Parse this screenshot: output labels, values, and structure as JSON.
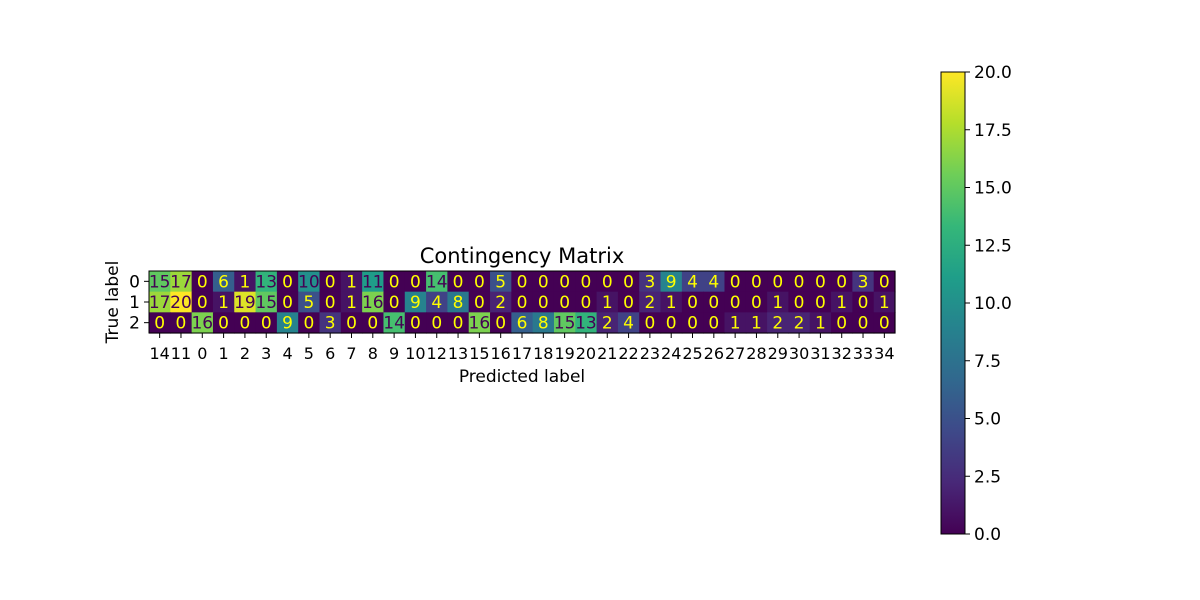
{
  "chart_data": {
    "type": "heatmap",
    "title": "Contingency Matrix",
    "xlabel": "Predicted label",
    "ylabel": "True label",
    "x_categories": [
      "14",
      "11",
      "0",
      "1",
      "2",
      "3",
      "4",
      "5",
      "6",
      "7",
      "8",
      "9",
      "10",
      "12",
      "13",
      "15",
      "16",
      "17",
      "18",
      "19",
      "20",
      "21",
      "22",
      "23",
      "24",
      "25",
      "26",
      "27",
      "28",
      "29",
      "30",
      "31",
      "32",
      "33",
      "34"
    ],
    "y_categories": [
      "0",
      "1",
      "2"
    ],
    "values": [
      [
        15,
        17,
        0,
        6,
        1,
        13,
        0,
        10,
        0,
        1,
        11,
        0,
        0,
        14,
        0,
        0,
        5,
        0,
        0,
        0,
        0,
        0,
        0,
        3,
        9,
        4,
        4,
        0,
        0,
        0,
        0,
        0,
        0,
        3,
        0
      ],
      [
        17,
        20,
        0,
        1,
        19,
        15,
        0,
        5,
        0,
        1,
        16,
        0,
        9,
        4,
        8,
        0,
        2,
        0,
        0,
        0,
        0,
        1,
        0,
        2,
        1,
        0,
        0,
        0,
        0,
        1,
        0,
        0,
        1,
        0,
        1
      ],
      [
        0,
        0,
        16,
        0,
        0,
        0,
        9,
        0,
        3,
        0,
        0,
        14,
        0,
        0,
        0,
        16,
        0,
        6,
        8,
        15,
        13,
        2,
        4,
        0,
        0,
        0,
        0,
        1,
        1,
        2,
        2,
        1,
        0,
        0,
        0
      ]
    ],
    "colormap": "viridis",
    "vmin": 0,
    "vmax": 20,
    "colorbar_ticks": [
      "0.0",
      "2.5",
      "5.0",
      "7.5",
      "10.0",
      "12.5",
      "15.0",
      "17.5",
      "20.0"
    ],
    "grid": false,
    "annotation_color_light": "#ffff00",
    "annotation_color_dark": "#440154"
  }
}
